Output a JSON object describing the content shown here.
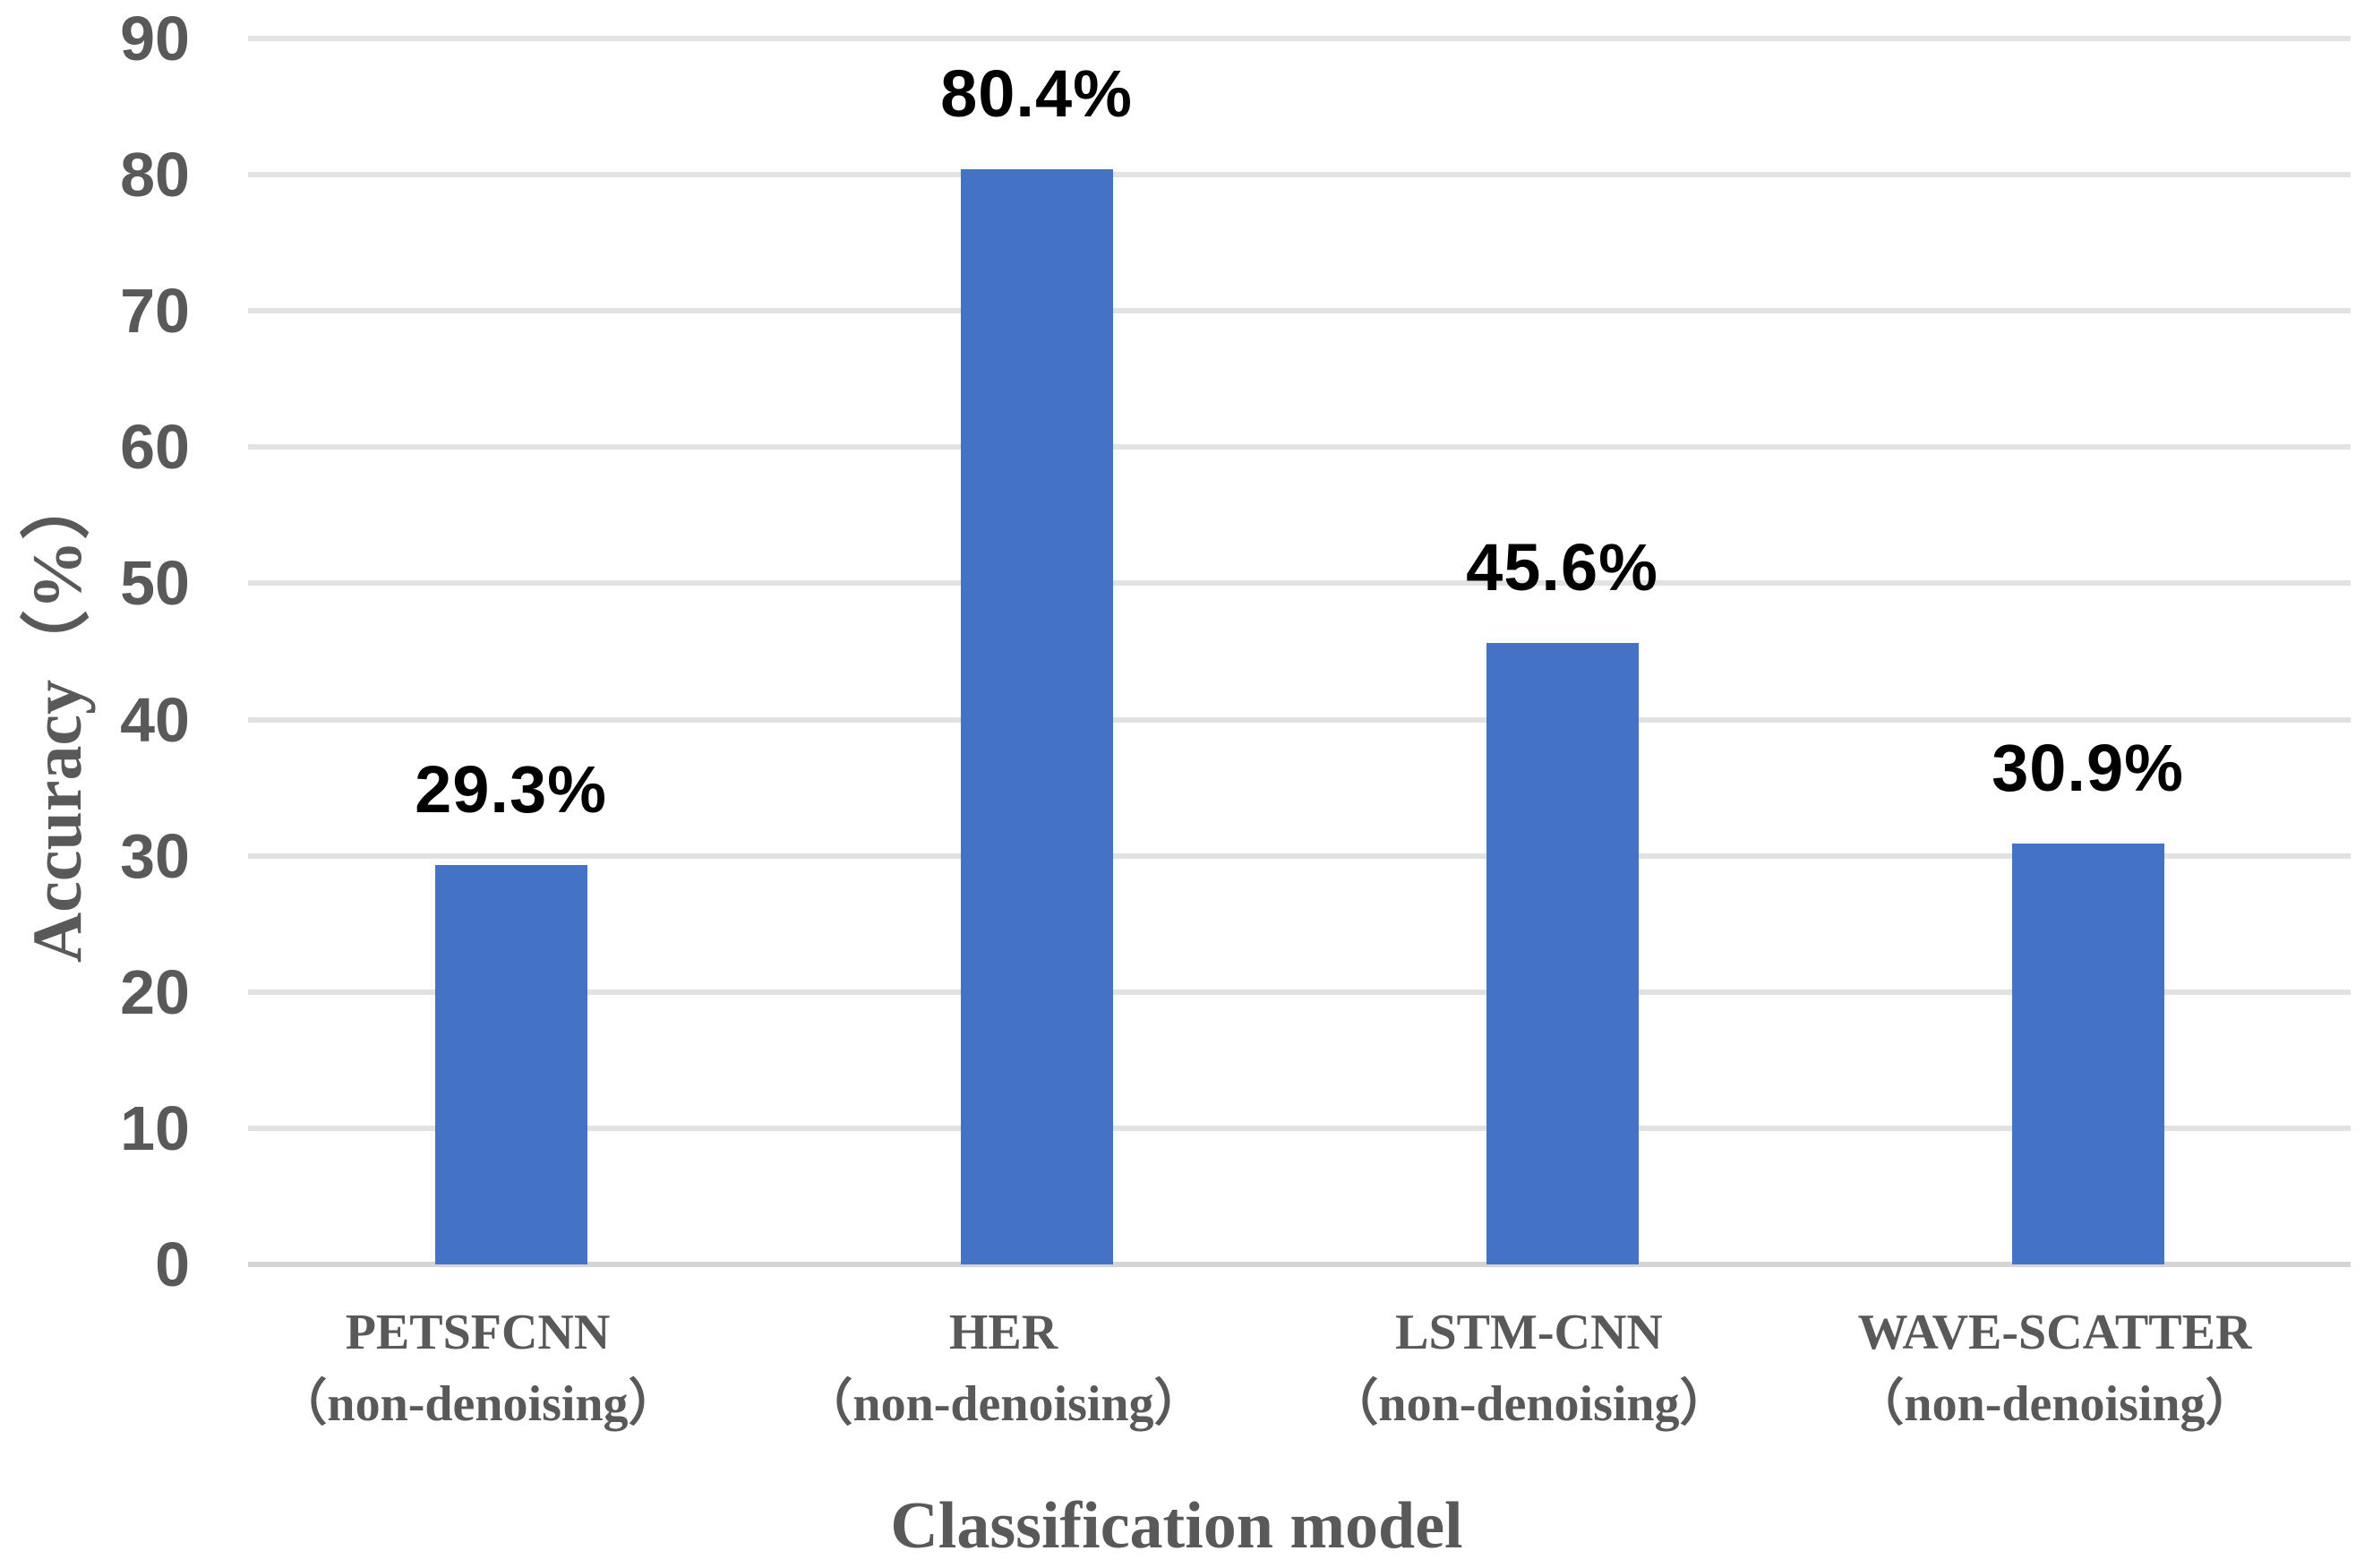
{
  "chart_data": {
    "type": "bar",
    "title": "",
    "xlabel": "Classification model",
    "ylabel": "Accuracy（%）",
    "categories": [
      "PETSFCNN",
      "HER",
      "LSTM-CNN",
      "WAVE-SCATTER"
    ],
    "category_sublabels": [
      "（non-denoising）",
      "（non-denoising）",
      "（non-denoising）",
      "（non-denoising）"
    ],
    "values": [
      29.3,
      80.4,
      45.6,
      30.9
    ],
    "value_labels": [
      "29.3%",
      "80.4%",
      "45.6%",
      "30.9%"
    ],
    "ylim": [
      0,
      90
    ],
    "ytick_step": 10,
    "yticks": [
      "0",
      "10",
      "20",
      "30",
      "40",
      "50",
      "60",
      "70",
      "80",
      "90"
    ],
    "grid": "horizontal-only",
    "legend": "none",
    "series_name": "Accuracy"
  },
  "colors": {
    "bar": "#4472C4",
    "axis_text": "#595959",
    "value_label": "#000000",
    "gridline": "#E2E2E2",
    "baseline": "#D5D5D5",
    "background": "#FFFFFF"
  }
}
